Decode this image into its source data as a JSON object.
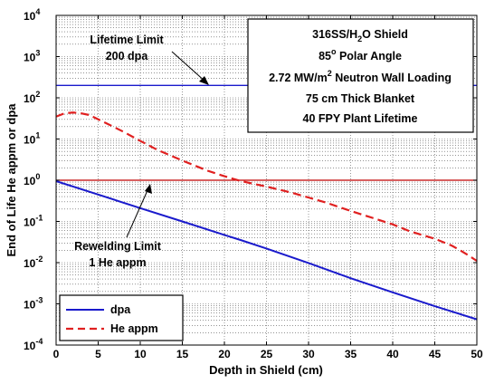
{
  "chart_data": {
    "type": "line",
    "title": "",
    "xlabel": "Depth in Shield (cm)",
    "ylabel": "End of Life He appm or dpa",
    "xlim": [
      0,
      50
    ],
    "ylim_exp": [
      -4,
      4
    ],
    "y_scale": "log",
    "grid": "dotted, log minor",
    "x_ticks": [
      "0",
      "5",
      "10",
      "15",
      "20",
      "25",
      "30",
      "35",
      "40",
      "45",
      "50"
    ],
    "y_ticks": [
      "10",
      "10",
      "10",
      "10",
      "10",
      "10",
      "10",
      "10",
      "10"
    ],
    "y_tick_exponents": [
      "-4",
      "-3",
      "-2",
      "-1",
      "0",
      "1",
      "2",
      "3",
      "4"
    ],
    "series": [
      {
        "name": "dpa",
        "color": "#1a1acc",
        "style": "solid",
        "x": [
          0,
          5,
          10,
          15,
          20,
          22,
          25,
          30,
          35,
          40,
          45,
          50
        ],
        "y": [
          0.95,
          0.45,
          0.21,
          0.1,
          0.047,
          0.035,
          0.022,
          0.0098,
          0.0042,
          0.0019,
          0.00088,
          0.00042
        ]
      },
      {
        "name": "He appm",
        "color": "#e02020",
        "style": "dashed",
        "x": [
          0,
          1,
          2,
          3,
          4,
          5,
          6,
          8,
          10,
          12,
          15,
          18,
          20,
          22,
          25,
          28,
          30,
          32,
          35,
          38,
          40,
          42,
          45,
          47,
          48,
          49,
          50
        ],
        "y": [
          35,
          42,
          44,
          42,
          38,
          30,
          24,
          15,
          9,
          5.5,
          3,
          1.7,
          1.25,
          0.95,
          0.7,
          0.5,
          0.38,
          0.29,
          0.18,
          0.115,
          0.085,
          0.058,
          0.038,
          0.026,
          0.02,
          0.015,
          0.011
        ]
      }
    ],
    "reference_lines": [
      {
        "y": 200,
        "color": "#1a1acc"
      },
      {
        "y": 1,
        "color": "#c00000"
      }
    ],
    "annotations": {
      "lifetime_limit": [
        "Lifetime Limit",
        "200 dpa"
      ],
      "rewelding_limit": [
        "Rewelding Limit",
        "1 He appm"
      ]
    },
    "info_box": {
      "line1_pre": "316SS/H",
      "line1_sub": "2",
      "line1_post": "O Shield",
      "line2_pre": "85",
      "line2_sup": "o",
      "line2_post": " Polar Angle",
      "line3_pre": "2.72 MW/m",
      "line3_sup": "2",
      "line3_post": " Neutron Wall Loading",
      "line4": "75 cm Thick Blanket",
      "line5": "40 FPY Plant Lifetime"
    },
    "legend": {
      "placement": "bottom-left",
      "entries": [
        "dpa",
        "He appm"
      ]
    }
  }
}
